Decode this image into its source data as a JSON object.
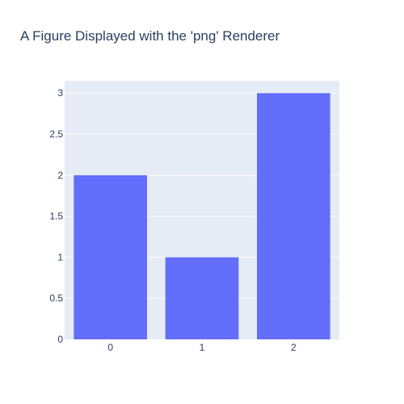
{
  "chart_data": {
    "type": "bar",
    "title": "A Figure Displayed with the 'png' Renderer",
    "categories": [
      "0",
      "1",
      "2"
    ],
    "values": [
      2,
      1,
      3
    ],
    "ylim": [
      0,
      3.15
    ],
    "yticks": [
      0,
      0.5,
      1,
      1.5,
      2,
      2.5,
      3
    ],
    "ytick_labels": [
      "0",
      "0.5",
      "1",
      "1.5",
      "2",
      "2.5",
      "3"
    ],
    "xlabel": "",
    "ylabel": "",
    "grid": true,
    "colors": {
      "bar": "#636efa",
      "plot_background": "#e5ecf6",
      "grid": "#ffffff",
      "text": "#2a3f5f"
    }
  }
}
